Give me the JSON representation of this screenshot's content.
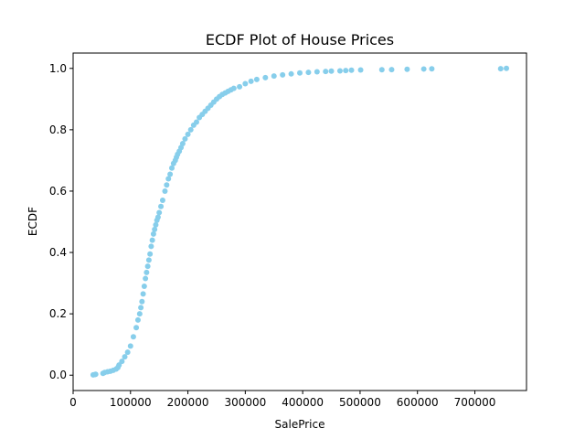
{
  "chart_data": {
    "type": "scatter",
    "title": "ECDF Plot of House Prices",
    "xlabel": "SalePrice",
    "ylabel": "ECDF",
    "xlim": [
      0,
      790000
    ],
    "ylim": [
      -0.05,
      1.05
    ],
    "grid": false,
    "legend": "none",
    "xticks": [
      {
        "value": 0,
        "label": "0"
      },
      {
        "value": 100000,
        "label": "100000"
      },
      {
        "value": 200000,
        "label": "200000"
      },
      {
        "value": 300000,
        "label": "300000"
      },
      {
        "value": 400000,
        "label": "400000"
      },
      {
        "value": 500000,
        "label": "500000"
      },
      {
        "value": 600000,
        "label": "600000"
      },
      {
        "value": 700000,
        "label": "700000"
      }
    ],
    "yticks": [
      {
        "value": 0.0,
        "label": "0.0"
      },
      {
        "value": 0.2,
        "label": "0.2"
      },
      {
        "value": 0.4,
        "label": "0.4"
      },
      {
        "value": 0.6,
        "label": "0.6"
      },
      {
        "value": 0.8,
        "label": "0.8"
      },
      {
        "value": 1.0,
        "label": "1.0"
      }
    ],
    "series": [
      {
        "color": "#87ceeb",
        "x": [
          34900,
          37900,
          39300,
          52000,
          55000,
          60000,
          65000,
          70000,
          75000,
          78000,
          80000,
          85000,
          90000,
          95000,
          100000,
          105000,
          110000,
          113000,
          116000,
          118000,
          120000,
          122000,
          124000,
          126000,
          128000,
          130000,
          132000,
          134000,
          136000,
          138000,
          140000,
          142000,
          144000,
          146000,
          148000,
          150000,
          153000,
          156000,
          160000,
          163000,
          166000,
          169000,
          172000,
          175000,
          178000,
          180000,
          182000,
          185000,
          188000,
          191000,
          195000,
          200000,
          205000,
          210000,
          215000,
          220000,
          225000,
          230000,
          235000,
          240000,
          245000,
          250000,
          255000,
          260000,
          265000,
          270000,
          275000,
          280000,
          290000,
          300000,
          310000,
          320000,
          335000,
          350000,
          365000,
          380000,
          395000,
          410000,
          425000,
          440000,
          450000,
          465000,
          475000,
          485000,
          501000,
          538000,
          555000,
          582000,
          611000,
          625000,
          745000,
          755000
        ],
        "y": [
          0.001,
          0.002,
          0.003,
          0.006,
          0.009,
          0.011,
          0.013,
          0.016,
          0.02,
          0.025,
          0.033,
          0.045,
          0.06,
          0.075,
          0.095,
          0.125,
          0.155,
          0.18,
          0.2,
          0.22,
          0.24,
          0.265,
          0.29,
          0.315,
          0.335,
          0.355,
          0.375,
          0.395,
          0.42,
          0.44,
          0.46,
          0.475,
          0.49,
          0.505,
          0.515,
          0.53,
          0.55,
          0.57,
          0.6,
          0.62,
          0.64,
          0.655,
          0.675,
          0.69,
          0.7,
          0.71,
          0.72,
          0.73,
          0.742,
          0.755,
          0.77,
          0.785,
          0.8,
          0.815,
          0.825,
          0.84,
          0.85,
          0.86,
          0.87,
          0.88,
          0.89,
          0.9,
          0.908,
          0.915,
          0.92,
          0.925,
          0.93,
          0.935,
          0.94,
          0.95,
          0.958,
          0.964,
          0.97,
          0.975,
          0.979,
          0.982,
          0.985,
          0.987,
          0.989,
          0.99,
          0.991,
          0.992,
          0.993,
          0.994,
          0.995,
          0.9955,
          0.996,
          0.997,
          0.998,
          0.9985,
          0.999,
          1.0
        ]
      }
    ]
  }
}
